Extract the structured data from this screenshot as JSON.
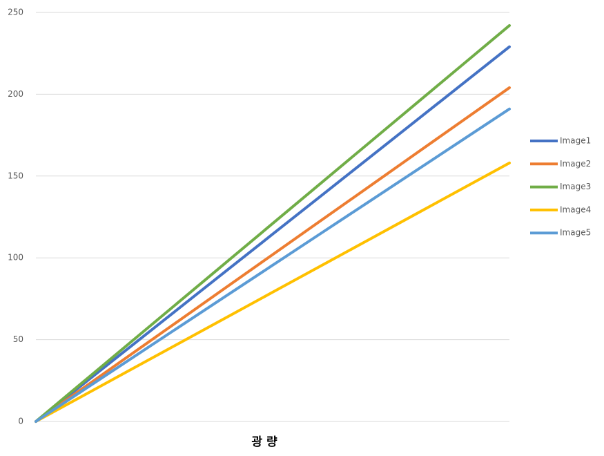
{
  "chart_data": {
    "type": "line",
    "x_label": "광 량",
    "categories": [
      null,
      null,
      null,
      null,
      null,
      null,
      null,
      null,
      null,
      null,
      null
    ],
    "series": [
      {
        "name": "Image1",
        "color": "#4472c4",
        "values": [
          0,
          22.9,
          45.8,
          68.7,
          91.6,
          114.5,
          137.4,
          160.3,
          183.2,
          206.1,
          229
        ]
      },
      {
        "name": "Image2",
        "color": "#ed7d31",
        "values": [
          0,
          20.4,
          40.8,
          61.2,
          81.6,
          102,
          122.4,
          142.8,
          163.2,
          183.6,
          204
        ]
      },
      {
        "name": "Image3",
        "color": "#70ad47",
        "values": [
          0,
          24.2,
          48.4,
          72.6,
          96.8,
          121,
          145.2,
          169.4,
          193.6,
          217.8,
          242
        ]
      },
      {
        "name": "Image4",
        "color": "#ffc000",
        "values": [
          0,
          15.8,
          31.6,
          47.4,
          63.2,
          79,
          94.8,
          110.6,
          126.4,
          142.2,
          158
        ]
      },
      {
        "name": "Image5",
        "color": "#5b9bd5",
        "values": [
          0,
          19.1,
          38.2,
          57.3,
          76.4,
          95.5,
          114.6,
          133.7,
          152.8,
          171.9,
          191
        ]
      }
    ],
    "ylim": [
      0,
      250
    ],
    "yticks": [
      0,
      50,
      100,
      150,
      200,
      250
    ],
    "grid": true,
    "legend": "right"
  }
}
